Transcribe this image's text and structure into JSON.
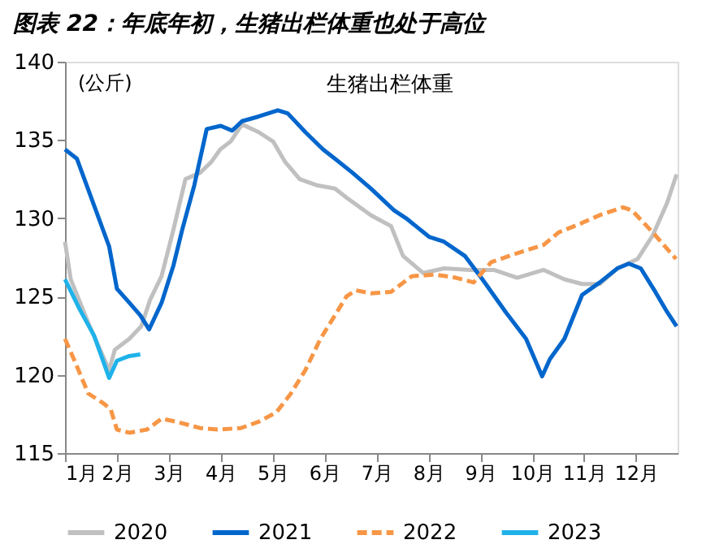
{
  "chart_data": {
    "type": "line",
    "title": "图表 22：年底年初，生猪出栏体重也处于高位",
    "subtitle": "生猪出栏体重",
    "ylabel": "(公斤)",
    "xlim": [
      1,
      12.8
    ],
    "xticks": [
      {
        "value": 1,
        "label": "1月"
      },
      {
        "value": 2,
        "label": "2月"
      },
      {
        "value": 3,
        "label": "3月"
      },
      {
        "value": 4,
        "label": "4月"
      },
      {
        "value": 5,
        "label": "5月"
      },
      {
        "value": 6,
        "label": "6月"
      },
      {
        "value": 7,
        "label": "7月"
      },
      {
        "value": 8,
        "label": "8月"
      },
      {
        "value": 9,
        "label": "9月"
      },
      {
        "value": 10,
        "label": "10月"
      },
      {
        "value": 11,
        "label": "11月"
      },
      {
        "value": 12,
        "label": "12月"
      }
    ],
    "ylim": [
      115,
      140
    ],
    "yticks": [
      115,
      120,
      125,
      130,
      135,
      140
    ],
    "grid": false,
    "legend": "bottom",
    "marker": "none",
    "series": [
      {
        "name": "2020",
        "color": "#c0c0c0",
        "line_style": "solid",
        "x": [
          1.0,
          1.11,
          1.45,
          1.85,
          1.96,
          2.24,
          2.47,
          2.64,
          2.86,
          3.09,
          3.32,
          3.6,
          3.82,
          3.99,
          4.19,
          4.41,
          4.73,
          5.01,
          5.24,
          5.52,
          5.86,
          6.2,
          6.43,
          6.89,
          7.28,
          7.51,
          7.9,
          8.3,
          8.81,
          9.26,
          9.71,
          10.22,
          10.62,
          10.96,
          11.3,
          11.64,
          12.03,
          12.32,
          12.6,
          12.78
        ],
        "values": [
          128.5,
          126.1,
          123.3,
          120.3,
          121.6,
          122.3,
          123.1,
          124.8,
          126.3,
          129.3,
          132.5,
          132.9,
          133.6,
          134.4,
          134.9,
          136.0,
          135.5,
          134.9,
          133.6,
          132.5,
          132.1,
          131.9,
          131.3,
          130.2,
          129.5,
          127.6,
          126.5,
          126.8,
          126.7,
          126.7,
          126.2,
          126.7,
          126.1,
          125.8,
          125.8,
          126.8,
          127.4,
          128.9,
          131.0,
          132.8
        ]
      },
      {
        "name": "2021",
        "color": "#0066cc",
        "line_style": "solid",
        "x": [
          1.0,
          1.23,
          1.85,
          2.0,
          2.24,
          2.45,
          2.62,
          2.86,
          3.09,
          3.26,
          3.49,
          3.73,
          4.0,
          4.22,
          4.41,
          4.73,
          5.1,
          5.29,
          5.63,
          5.97,
          6.2,
          6.54,
          6.89,
          7.34,
          7.57,
          8.02,
          8.3,
          8.7,
          9.04,
          9.49,
          9.88,
          10.19,
          10.34,
          10.62,
          10.96,
          11.3,
          11.64,
          11.86,
          12.09,
          12.37,
          12.6,
          12.78
        ],
        "values": [
          134.4,
          133.8,
          128.2,
          125.5,
          124.6,
          123.8,
          122.9,
          124.6,
          127.0,
          129.3,
          132.1,
          135.7,
          135.9,
          135.6,
          136.2,
          136.5,
          136.9,
          136.7,
          135.5,
          134.4,
          133.8,
          132.9,
          131.9,
          130.5,
          130.0,
          128.8,
          128.5,
          127.6,
          126.1,
          124.0,
          122.3,
          119.9,
          121.0,
          122.3,
          125.1,
          125.9,
          126.8,
          127.1,
          126.8,
          125.3,
          124.0,
          123.1
        ]
      },
      {
        "name": "2022",
        "color": "#f79646",
        "line_style": "dashed",
        "x": [
          1.0,
          1.17,
          1.45,
          1.73,
          1.88,
          2.0,
          2.24,
          2.58,
          2.86,
          3.15,
          3.6,
          3.94,
          4.39,
          4.73,
          5.07,
          5.35,
          5.63,
          5.92,
          6.2,
          6.42,
          6.6,
          6.89,
          7.28,
          7.68,
          8.13,
          8.53,
          8.87,
          9.21,
          9.83,
          10.22,
          10.51,
          10.96,
          11.3,
          11.75,
          11.92,
          12.32,
          12.77
        ],
        "values": [
          122.3,
          121.0,
          118.8,
          118.2,
          117.8,
          116.5,
          116.3,
          116.5,
          117.2,
          117.0,
          116.6,
          116.5,
          116.6,
          117.0,
          117.6,
          118.8,
          120.3,
          122.3,
          123.8,
          125.0,
          125.4,
          125.2,
          125.3,
          126.3,
          126.4,
          126.2,
          125.9,
          127.2,
          127.9,
          128.3,
          129.1,
          129.7,
          130.2,
          130.7,
          130.5,
          129.1,
          127.4
        ]
      },
      {
        "name": "2023",
        "color": "#1fb2ea",
        "line_style": "solid",
        "x": [
          1.0,
          1.28,
          1.56,
          1.85,
          2.0,
          2.24,
          2.45
        ],
        "values": [
          126.1,
          124.2,
          122.5,
          119.8,
          120.9,
          121.2,
          121.3
        ]
      }
    ]
  }
}
